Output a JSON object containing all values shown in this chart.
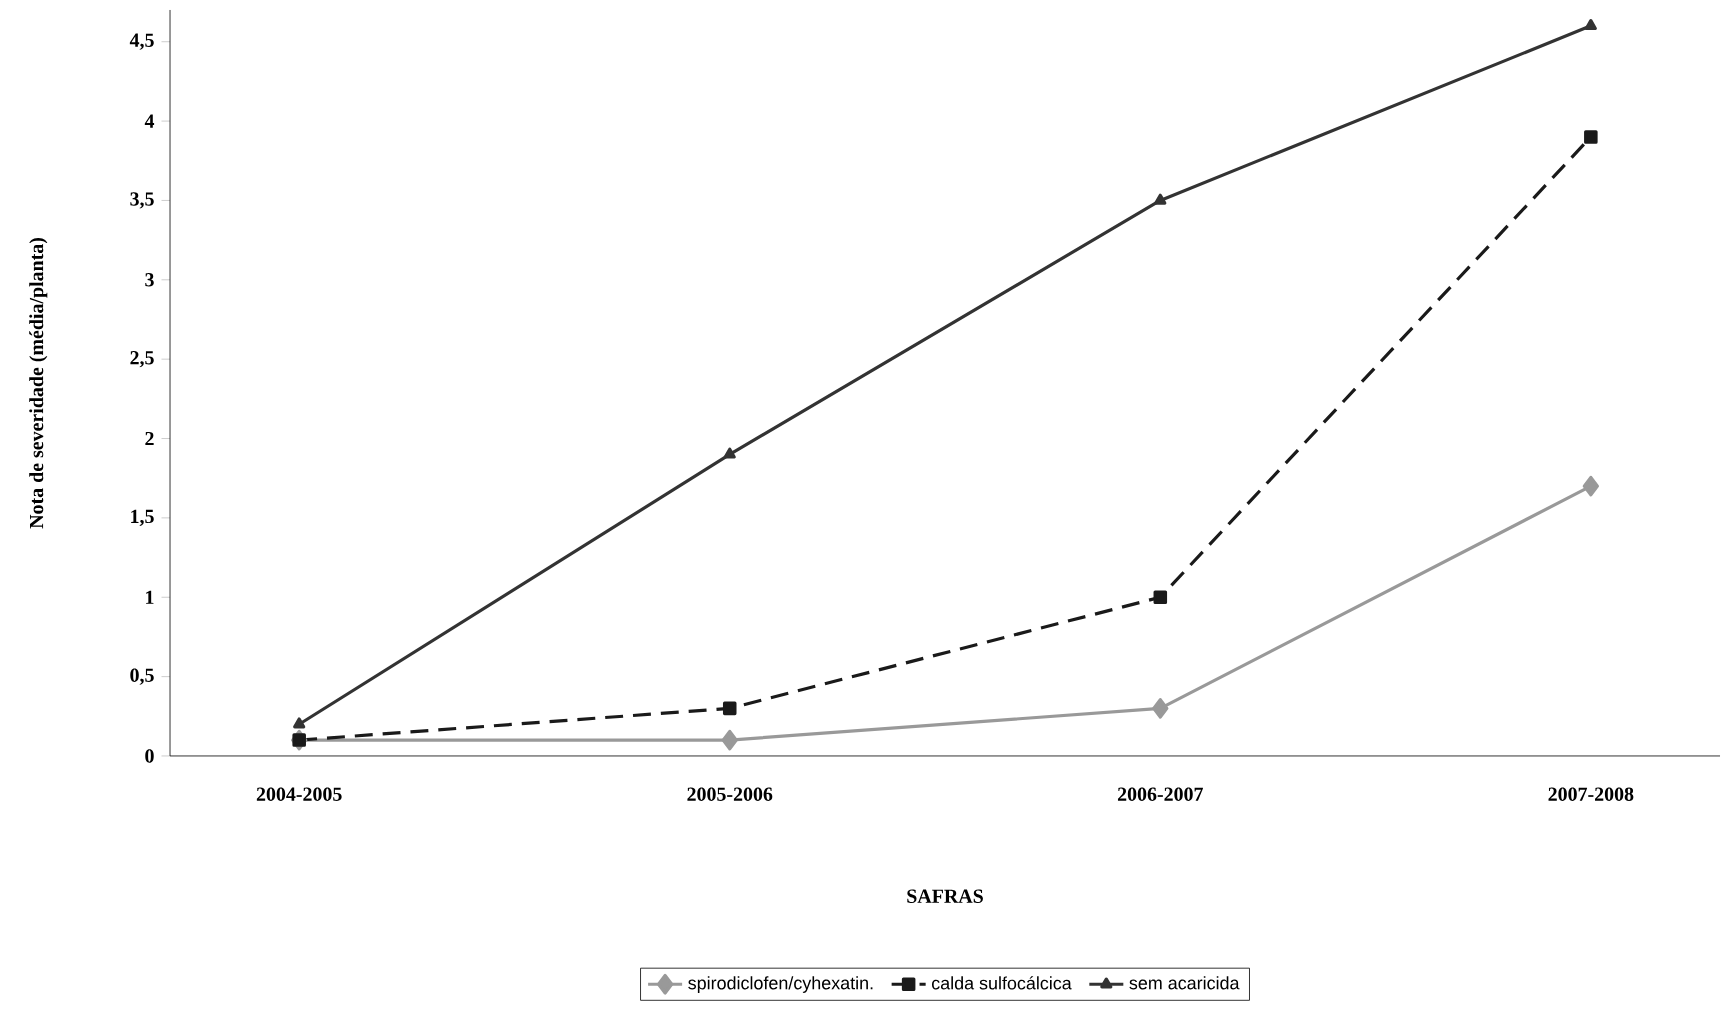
{
  "chart_data": {
    "type": "line",
    "xlabel": "SAFRAS",
    "ylabel": "Nota de severidade (média/planta)",
    "categories": [
      "2004-2005",
      "2005-2006",
      "2006-2007",
      "2007-2008"
    ],
    "series": [
      {
        "name": "spirodiclofen/cyhexatin.",
        "color": "#999999",
        "values": [
          0.1,
          0.1,
          0.3,
          1.7
        ],
        "marker": "diamond",
        "line_style": "solid"
      },
      {
        "name": "calda sulfocálcica",
        "color": "#1a1a1a",
        "values": [
          0.1,
          0.3,
          1.0,
          3.9
        ],
        "marker": "square",
        "line_style": "dashed"
      },
      {
        "name": "sem acaricida",
        "color": "#333333",
        "values": [
          0.2,
          1.9,
          3.5,
          4.6
        ],
        "marker": "triangle",
        "line_style": "solid"
      }
    ],
    "ylim": [
      0,
      4.7
    ],
    "yticks": [
      0,
      {
        "value": 0.5,
        "label": "0,5"
      },
      1,
      {
        "value": 1.5,
        "label": "1,5"
      },
      2,
      {
        "value": 2.5,
        "label": "2,5"
      },
      3,
      {
        "value": 3.5,
        "label": "3,5"
      },
      4,
      {
        "value": 4.5,
        "label": "4,5"
      }
    ],
    "grid": false,
    "legend": "bottom"
  }
}
